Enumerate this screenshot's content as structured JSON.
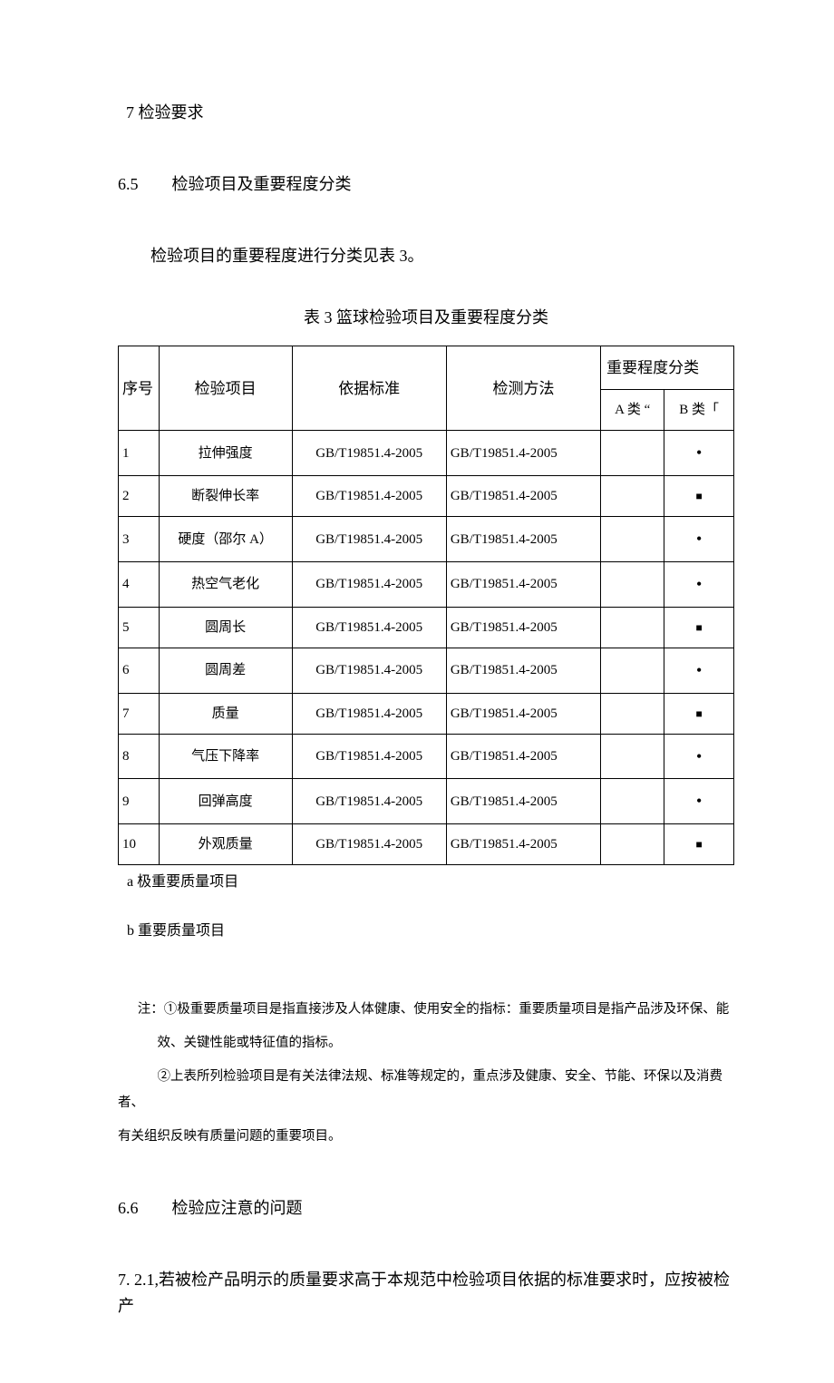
{
  "headings": {
    "h7": "7 检验要求",
    "h65_num": "6.5",
    "h65_title": "检验项目及重要程度分类",
    "intro": "检验项目的重要程度进行分类见表 3。",
    "table_caption": "表 3 篮球检验项目及重要程度分类",
    "h66_num": "6.6",
    "h66_title": "检验应注意的问题",
    "p721": "7.  2.1,若被检产品明示的质量要求高于本规范中检验项目依据的标准要求时，应按被检产"
  },
  "table": {
    "headers": {
      "seq": "序号",
      "item": "检验项目",
      "std": "依据标准",
      "method": "检测方法",
      "important": "重要程度分类",
      "classA": "A 类 “",
      "classB": "B 类「"
    },
    "rows": [
      {
        "no": "1",
        "item": "拉伸强度",
        "std": "GB/T19851.4-2005",
        "method": "GB/T19851.4-2005",
        "a": "",
        "b": "•"
      },
      {
        "no": "2",
        "item": "断裂伸长率",
        "std": "GB/T19851.4-2005",
        "method": "GB/T19851.4-2005",
        "a": "",
        "b": "■"
      },
      {
        "no": "3",
        "item": "硬度（邵尔 A）",
        "std": "GB/T19851.4-2005",
        "method": "GB/T19851.4-2005",
        "a": "",
        "b": "•"
      },
      {
        "no": "4",
        "item": "热空气老化",
        "std": "GB/T19851.4-2005",
        "method": "GB/T19851.4-2005",
        "a": "",
        "b": "•"
      },
      {
        "no": "5",
        "item": "圆周长",
        "std": "GB/T19851.4-2005",
        "method": "GB/T19851.4-2005",
        "a": "",
        "b": "■"
      },
      {
        "no": "6",
        "item": "圆周差",
        "std": "GB/T19851.4-2005",
        "method": "GB/T19851.4-2005",
        "a": "",
        "b": "•"
      },
      {
        "no": "7",
        "item": "质量",
        "std": "GB/T19851.4-2005",
        "method": "GB/T19851.4-2005",
        "a": "",
        "b": "■"
      },
      {
        "no": "8",
        "item": "气压下降率",
        "std": "GB/T19851.4-2005",
        "method": "GB/T19851.4-2005",
        "a": "",
        "b": "•"
      },
      {
        "no": "9",
        "item": "回弹高度",
        "std": "GB/T19851.4-2005",
        "method": "GB/T19851.4-2005",
        "a": "",
        "b": "•"
      },
      {
        "no": "10",
        "item": "外观质量",
        "std": "GB/T19851.4-2005",
        "method": "GB/T19851.4-2005",
        "a": "",
        "b": "■"
      }
    ]
  },
  "notes": {
    "a": "a 极重要质量项目",
    "b": "b 重要质量项目",
    "foot1a": "注：①极重要质量项目是指直接涉及人体健康、使用安全的指标：重要质量项目是指产品涉及环保、能",
    "foot1b": "效、关键性能或特征值的指标。",
    "foot2a": "②上表所列检验项目是有关法律法规、标准等规定的，重点涉及健康、安全、节能、环保以及消费者、",
    "foot2b": "有关组织反映有质量问题的重要项目。"
  },
  "style": {
    "dot_glyph": "•",
    "square_glyph": "■"
  }
}
